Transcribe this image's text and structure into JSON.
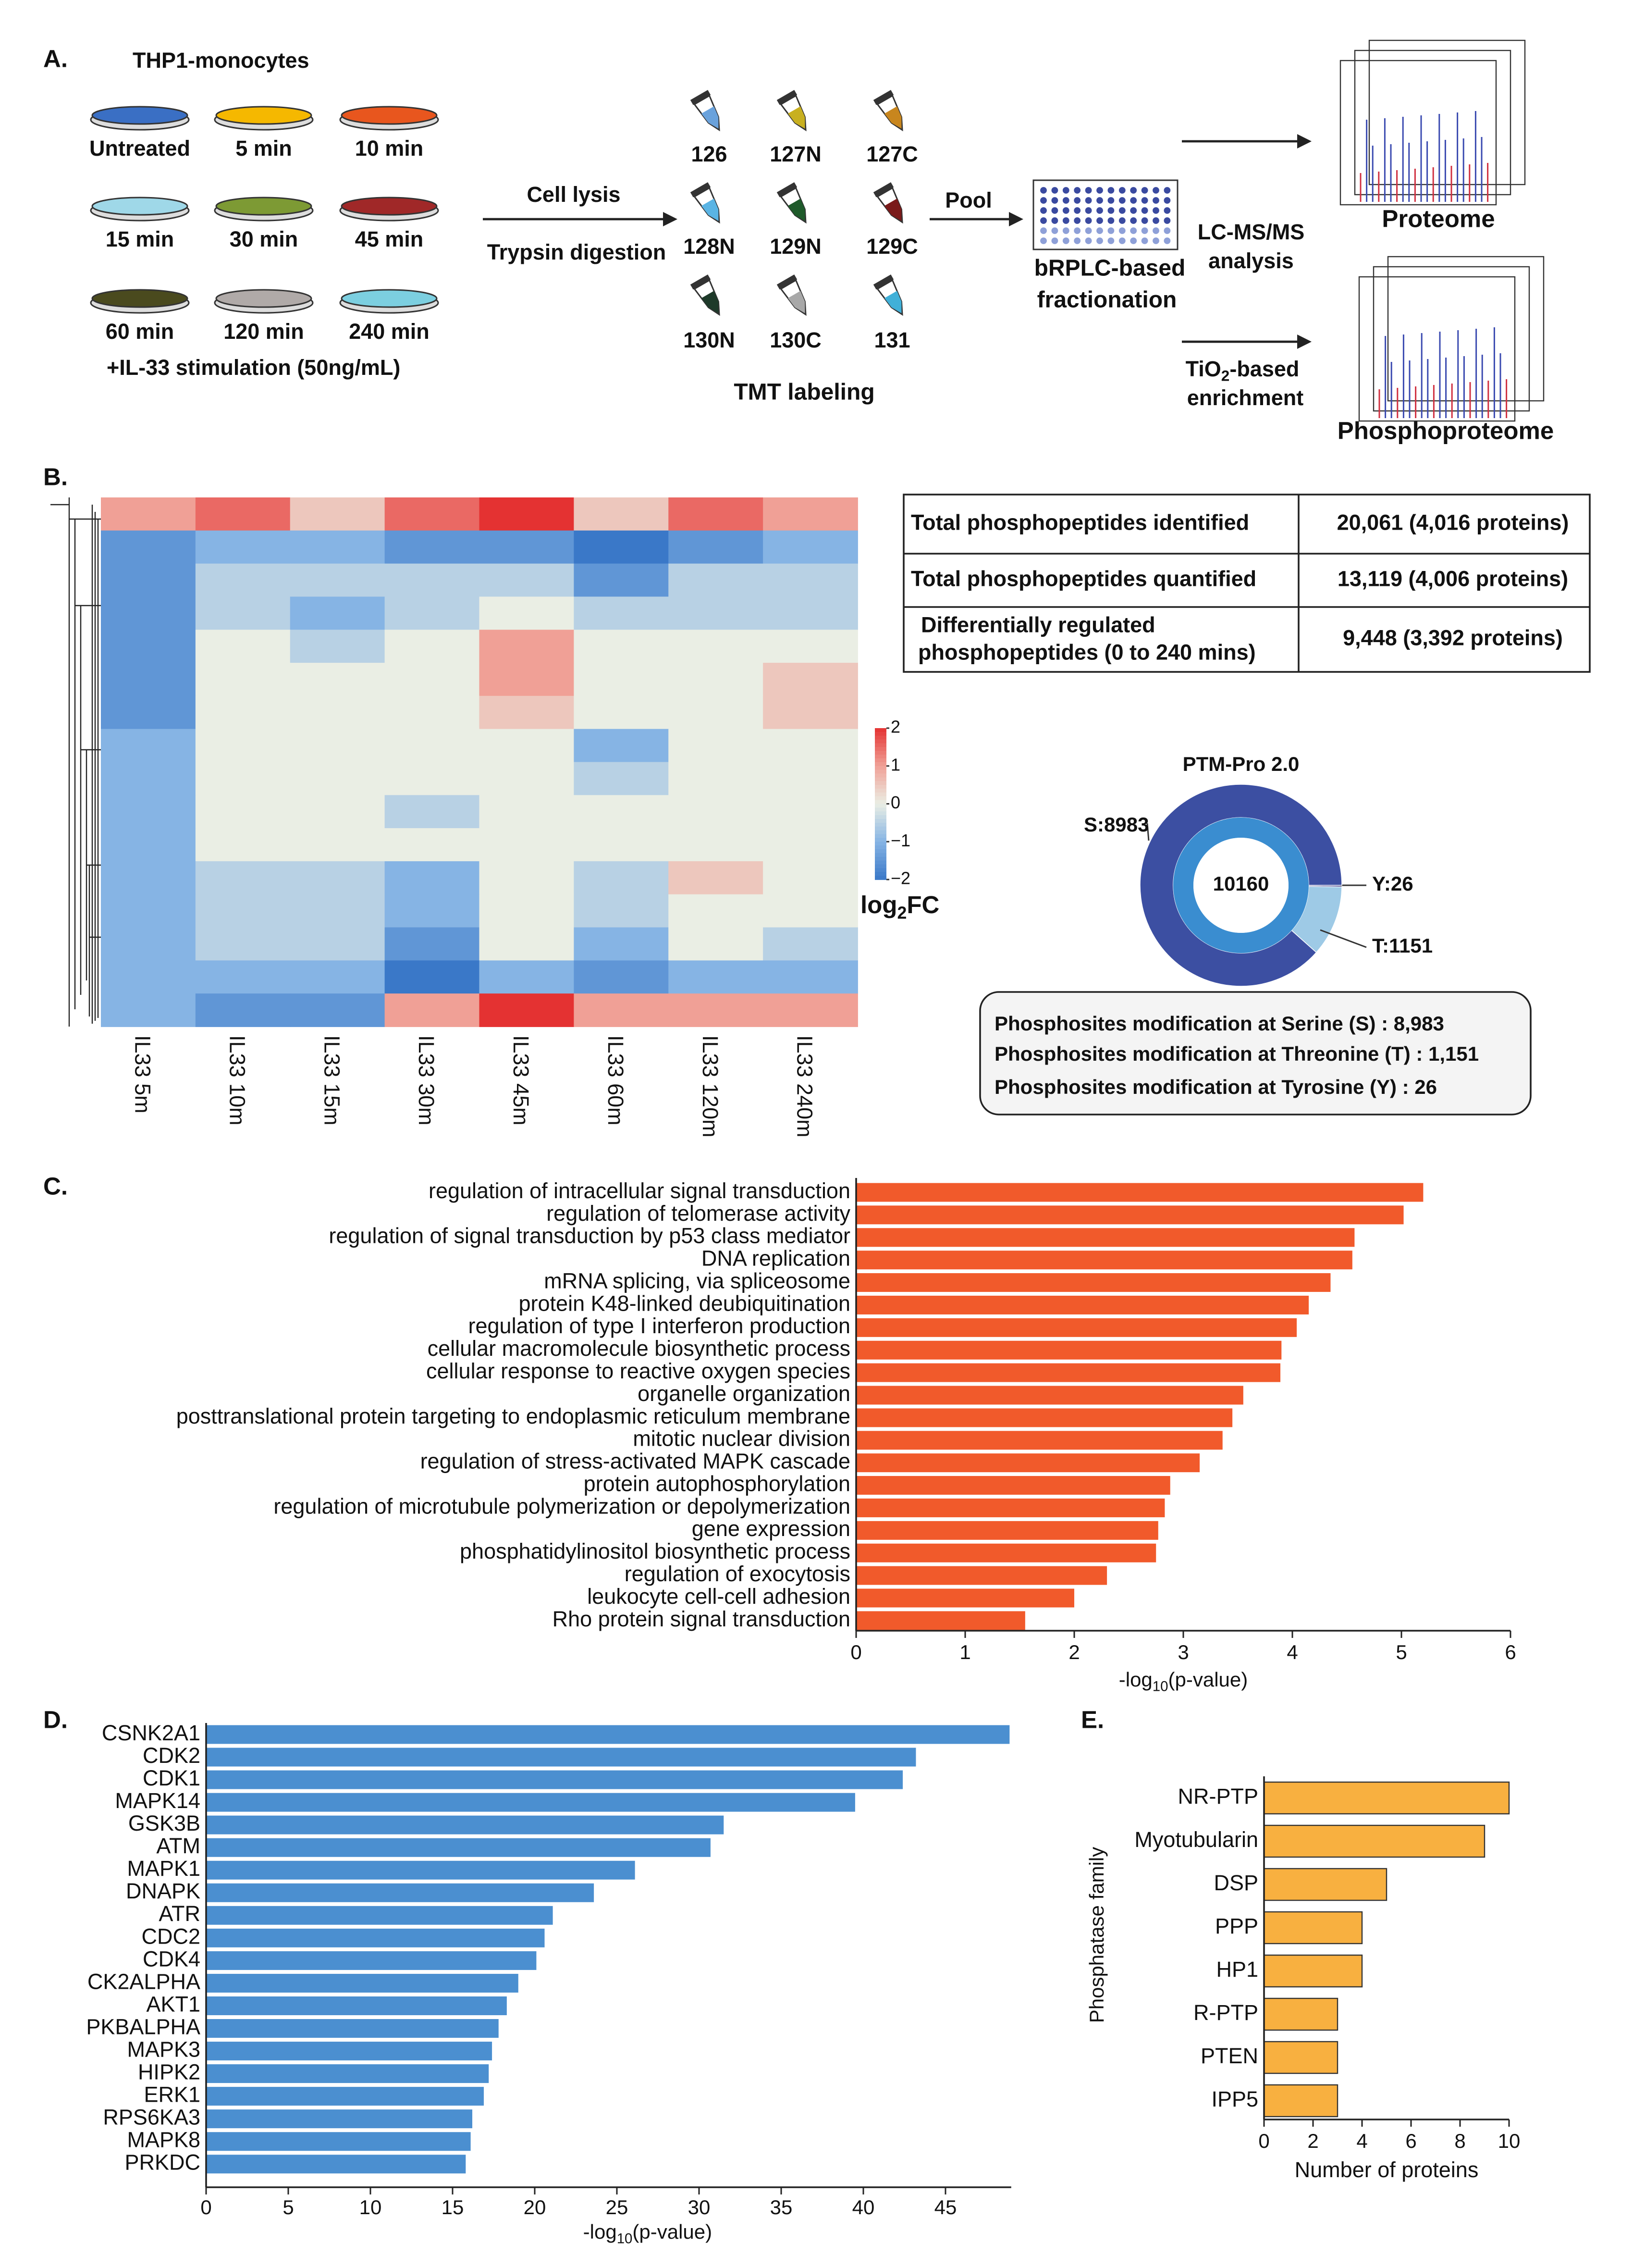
{
  "panel_labels": [
    "A.",
    "B.",
    "C.",
    "D.",
    "E."
  ],
  "panel_a": {
    "title": "THP1-monocytes",
    "conditions": [
      {
        "label": "Untreated",
        "color": "#3a6fc4"
      },
      {
        "label": "5 min",
        "color": "#f5b800"
      },
      {
        "label": "10 min",
        "color": "#e8561e"
      },
      {
        "label": "15 min",
        "color": "#9fd8e8"
      },
      {
        "label": "30 min",
        "color": "#7d9a34"
      },
      {
        "label": "45 min",
        "color": "#a02828"
      },
      {
        "label": "60 min",
        "color": "#4a4a1e"
      },
      {
        "label": "120 min",
        "color": "#b0aaa8"
      },
      {
        "label": "240 min",
        "color": "#7ccfe0"
      }
    ],
    "stimulation": "+IL-33  stimulation (50ng/mL)",
    "steps": [
      "Cell lysis",
      "Trypsin digestion"
    ],
    "tubes": [
      {
        "label": "126",
        "color": "#6aa2dc"
      },
      {
        "label": "127N",
        "color": "#c8b020"
      },
      {
        "label": "127C",
        "color": "#c8861e"
      },
      {
        "label": "128N",
        "color": "#5ab4e4"
      },
      {
        "label": "129N",
        "color": "#1e5a2a"
      },
      {
        "label": "129C",
        "color": "#7a1a1a"
      },
      {
        "label": "130N",
        "color": "#1e3a2a"
      },
      {
        "label": "130C",
        "color": "#a8a8a8"
      },
      {
        "label": "131",
        "color": "#40b0d8"
      }
    ],
    "tmt": "TMT labeling",
    "pool": "Pool",
    "fractionation": [
      "bRPLC-based",
      "fractionation"
    ],
    "lcms": [
      "LC-MS/MS",
      "analysis"
    ],
    "proteome": "Proteome",
    "enrichment": {
      "pre": "TiO",
      "sub": "2",
      "post": "-based",
      "line2": "enrichment"
    },
    "phosphoproteome": "Phosphoproteome"
  },
  "table": {
    "rows": [
      [
        "Total phosphopeptides identified",
        "20,061 (4,016 proteins)"
      ],
      [
        "Total phosphopeptides quantified",
        "13,119 (4,006 proteins)"
      ],
      [
        [
          "Differentially regulated",
          "phosphopeptides (0 to 240 mins)"
        ],
        "9,448 (3,392 proteins)"
      ]
    ]
  },
  "legend_box": [
    "Phosphosites modification at Serine (S) : 8,983",
    "Phosphosites modification at Threonine (T) : 1,151",
    "Phosphosites modification at Tyrosine (Y) : 26"
  ],
  "chart_data": [
    {
      "type": "heatmap",
      "columns": [
        "IL33 5m",
        "IL33 10m",
        "IL33 15m",
        "IL33 30m",
        "IL33 45m",
        "IL33 60m",
        "IL33 120m",
        "IL33 240m"
      ],
      "values": [
        [
          1,
          1.5,
          0.5,
          1.5,
          2,
          0.5,
          1.5,
          1
        ],
        [
          -1.5,
          -1,
          -1,
          -1.5,
          -1.5,
          -2,
          -1.5,
          -1
        ],
        [
          -1.5,
          -0.5,
          -0.5,
          -0.5,
          -0.5,
          -1.5,
          -0.5,
          -0.5
        ],
        [
          -1.5,
          -0.5,
          -1,
          -0.5,
          0,
          -0.5,
          -0.5,
          -0.5
        ],
        [
          -1.5,
          0,
          -0.5,
          0,
          1,
          0,
          0,
          0
        ],
        [
          -1.5,
          0,
          0,
          0,
          1,
          0,
          0,
          0.5
        ],
        [
          -1.5,
          0,
          0,
          0,
          0.5,
          0,
          0,
          0.5
        ],
        [
          -1,
          0,
          0,
          0,
          0,
          -1,
          0,
          0
        ],
        [
          -1,
          0,
          0,
          0,
          0,
          -0.5,
          0,
          0
        ],
        [
          -1,
          0,
          0,
          -0.5,
          0,
          0,
          0,
          0
        ],
        [
          -1,
          0,
          0,
          0,
          0,
          0,
          0,
          0
        ],
        [
          -1,
          -0.5,
          -0.5,
          -1,
          0,
          -0.5,
          0.5,
          0
        ],
        [
          -1,
          -0.5,
          -0.5,
          -1,
          0,
          -0.5,
          0,
          0
        ],
        [
          -1,
          -0.5,
          -0.5,
          -1.5,
          0,
          -1,
          0,
          -0.5
        ],
        [
          -1,
          -1,
          -1,
          -2,
          -1,
          -1.5,
          -1,
          -1
        ],
        [
          -1,
          -1.5,
          -1.5,
          1,
          2,
          1,
          1,
          1
        ]
      ],
      "zlim": [
        -2,
        2
      ],
      "zticks": [
        2,
        1,
        0,
        {
          "value": -1,
          "label": "−1"
        },
        {
          "value": -2,
          "label": "−2"
        }
      ],
      "colorbar_label": {
        "pre": "log",
        "sub": "2",
        "post": "FC"
      }
    },
    {
      "type": "donut",
      "title": "PTM-Pro 2.0",
      "categories": [
        "Y",
        "T",
        "S"
      ],
      "values": [
        26,
        1151,
        8983
      ],
      "value_labels": [
        "Y:26",
        "T:1151",
        "S:8983"
      ],
      "colors": [
        "#2e2e80",
        "#9ecae6",
        "#3c4fa2"
      ],
      "total": 10160,
      "total_color": "#3a8dd0"
    },
    {
      "type": "hbar",
      "categories": [
        "regulation of intracellular signal transduction",
        "regulation of telomerase activity",
        "regulation of signal transduction by p53 class mediator",
        "DNA replication",
        "mRNA splicing, via spliceosome",
        "protein K48-linked deubiquitination",
        "regulation of type I interferon production",
        "cellular macromolecule biosynthetic process",
        "cellular response to reactive oxygen species",
        "organelle organization",
        "posttranslational protein targeting to endoplasmic reticulum membrane",
        "mitotic nuclear division",
        "regulation of stress-activated MAPK cascade",
        "protein autophosphorylation",
        "regulation of microtubule polymerization or depolymerization",
        "gene expression",
        "phosphatidylinositol biosynthetic process",
        "regulation of exocytosis",
        "leukocyte cell-cell adhesion",
        "Rho protein signal transduction"
      ],
      "values": [
        5.2,
        5.02,
        4.57,
        4.55,
        4.35,
        4.15,
        4.04,
        3.9,
        3.89,
        3.55,
        3.45,
        3.36,
        3.15,
        2.88,
        2.83,
        2.77,
        2.75,
        2.3,
        2.0,
        1.55
      ],
      "color": "#f15a2b",
      "xlim": [
        0,
        6
      ],
      "xticks": [
        0,
        1,
        2,
        3,
        4,
        5,
        6
      ],
      "xlabel": {
        "pre": "-log",
        "sub": "10",
        "post": "(p-value)"
      }
    },
    {
      "type": "hbar",
      "categories": [
        "CSNK2A1",
        "CDK2",
        "CDK1",
        "MAPK14",
        "GSK3B",
        "ATM",
        "MAPK1",
        "DNAPK",
        "ATR",
        "CDC2",
        "CDK4",
        "CK2ALPHA",
        "AKT1",
        "PKBALPHA",
        "MAPK3",
        "HIPK2",
        "ERK1",
        "RPS6KA3",
        "MAPK8",
        "PRKDC"
      ],
      "values": [
        48.9,
        43.2,
        42.4,
        39.5,
        31.5,
        30.7,
        26.1,
        23.6,
        21.1,
        20.6,
        20.1,
        19.0,
        18.3,
        17.8,
        17.4,
        17.2,
        16.9,
        16.2,
        16.1,
        15.8
      ],
      "color": "#4b8fd0",
      "xlim": [
        0,
        49
      ],
      "xticks": [
        0,
        5,
        10,
        15,
        20,
        25,
        30,
        35,
        40,
        45
      ],
      "xlabel": {
        "pre": "-log",
        "sub": "10",
        "post": "(p-value)"
      }
    },
    {
      "type": "hbar",
      "categories": [
        "NR-PTP",
        "Myotubularin",
        "DSP",
        "PPP",
        "HP1",
        "R-PTP",
        "PTEN",
        "IPP5"
      ],
      "values": [
        10,
        9,
        5,
        4,
        4,
        3,
        3,
        3
      ],
      "color": "#f8b040",
      "xlim": [
        0,
        10
      ],
      "xticks": [
        0,
        2,
        4,
        6,
        8,
        10
      ],
      "xlabel": "Number of proteins",
      "ylabel": "Phosphatase family"
    }
  ]
}
